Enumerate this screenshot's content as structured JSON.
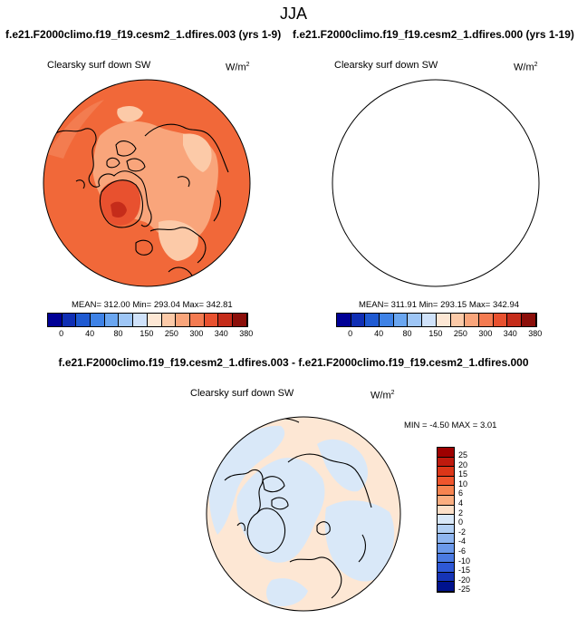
{
  "page_title": "JJA",
  "cases": {
    "left": "f.e21.F2000climo.f19_f19.cesm2_1.dfires.003 (yrs 1-9)",
    "right": "f.e21.F2000climo.f19_f19.cesm2_1.dfires.000 (yrs 1-19)"
  },
  "panels": [
    {
      "title": "Clearsky surf down SW",
      "units": "W/m",
      "units_sup": "2",
      "stats": "MEAN= 312.00  Min= 293.04  Max= 342.81"
    },
    {
      "title": "Clearsky surf down SW",
      "units": "W/m",
      "units_sup": "2",
      "stats": "MEAN= 311.91  Min= 293.15  Max= 342.94"
    }
  ],
  "colorbar": {
    "colors": [
      "#000096",
      "#0f2eb4",
      "#1f5ad2",
      "#3e82e6",
      "#6aa6f0",
      "#9ec6f6",
      "#cfe2fa",
      "#fde7d4",
      "#fccaa8",
      "#f9a57b",
      "#f47b51",
      "#e8512f",
      "#c52c1a",
      "#8c0f0a"
    ],
    "labels": [
      "0",
      "40",
      "80",
      "150",
      "250",
      "300",
      "340",
      "380"
    ]
  },
  "map_colors": {
    "ocean": "#f16839",
    "ocean_light": "#f37c50",
    "land_low": "#f9a57b",
    "land_light": "#fccaa8",
    "greenland_core": "#e8512f",
    "diff_neg": "#d9e8f8",
    "diff_pos": "#fde7d4"
  },
  "difference": {
    "title": "f.e21.F2000climo.f19_f19.cesm2_1.dfires.003 - f.e21.F2000climo.f19_f19.cesm2_1.dfires.000",
    "panel_title": "Clearsky surf down SW",
    "units": "W/m",
    "units_sup": "2",
    "stats": "MIN = -4.50 MAX =  3.01",
    "colorbar_colors": [
      "#9e0000",
      "#bf1a0e",
      "#dc3618",
      "#f0552c",
      "#f78450",
      "#fbae80",
      "#fde0c8",
      "#d9e8f8",
      "#b3d0f4",
      "#8fb6f0",
      "#6b99ea",
      "#4a7ae2",
      "#2e58d6",
      "#1634b6",
      "#00128e"
    ],
    "colorbar_labels": [
      "25",
      "20",
      "15",
      "10",
      "6",
      "4",
      "2",
      "0",
      "-2",
      "-4",
      "-6",
      "-10",
      "-15",
      "-20",
      "-25"
    ]
  }
}
